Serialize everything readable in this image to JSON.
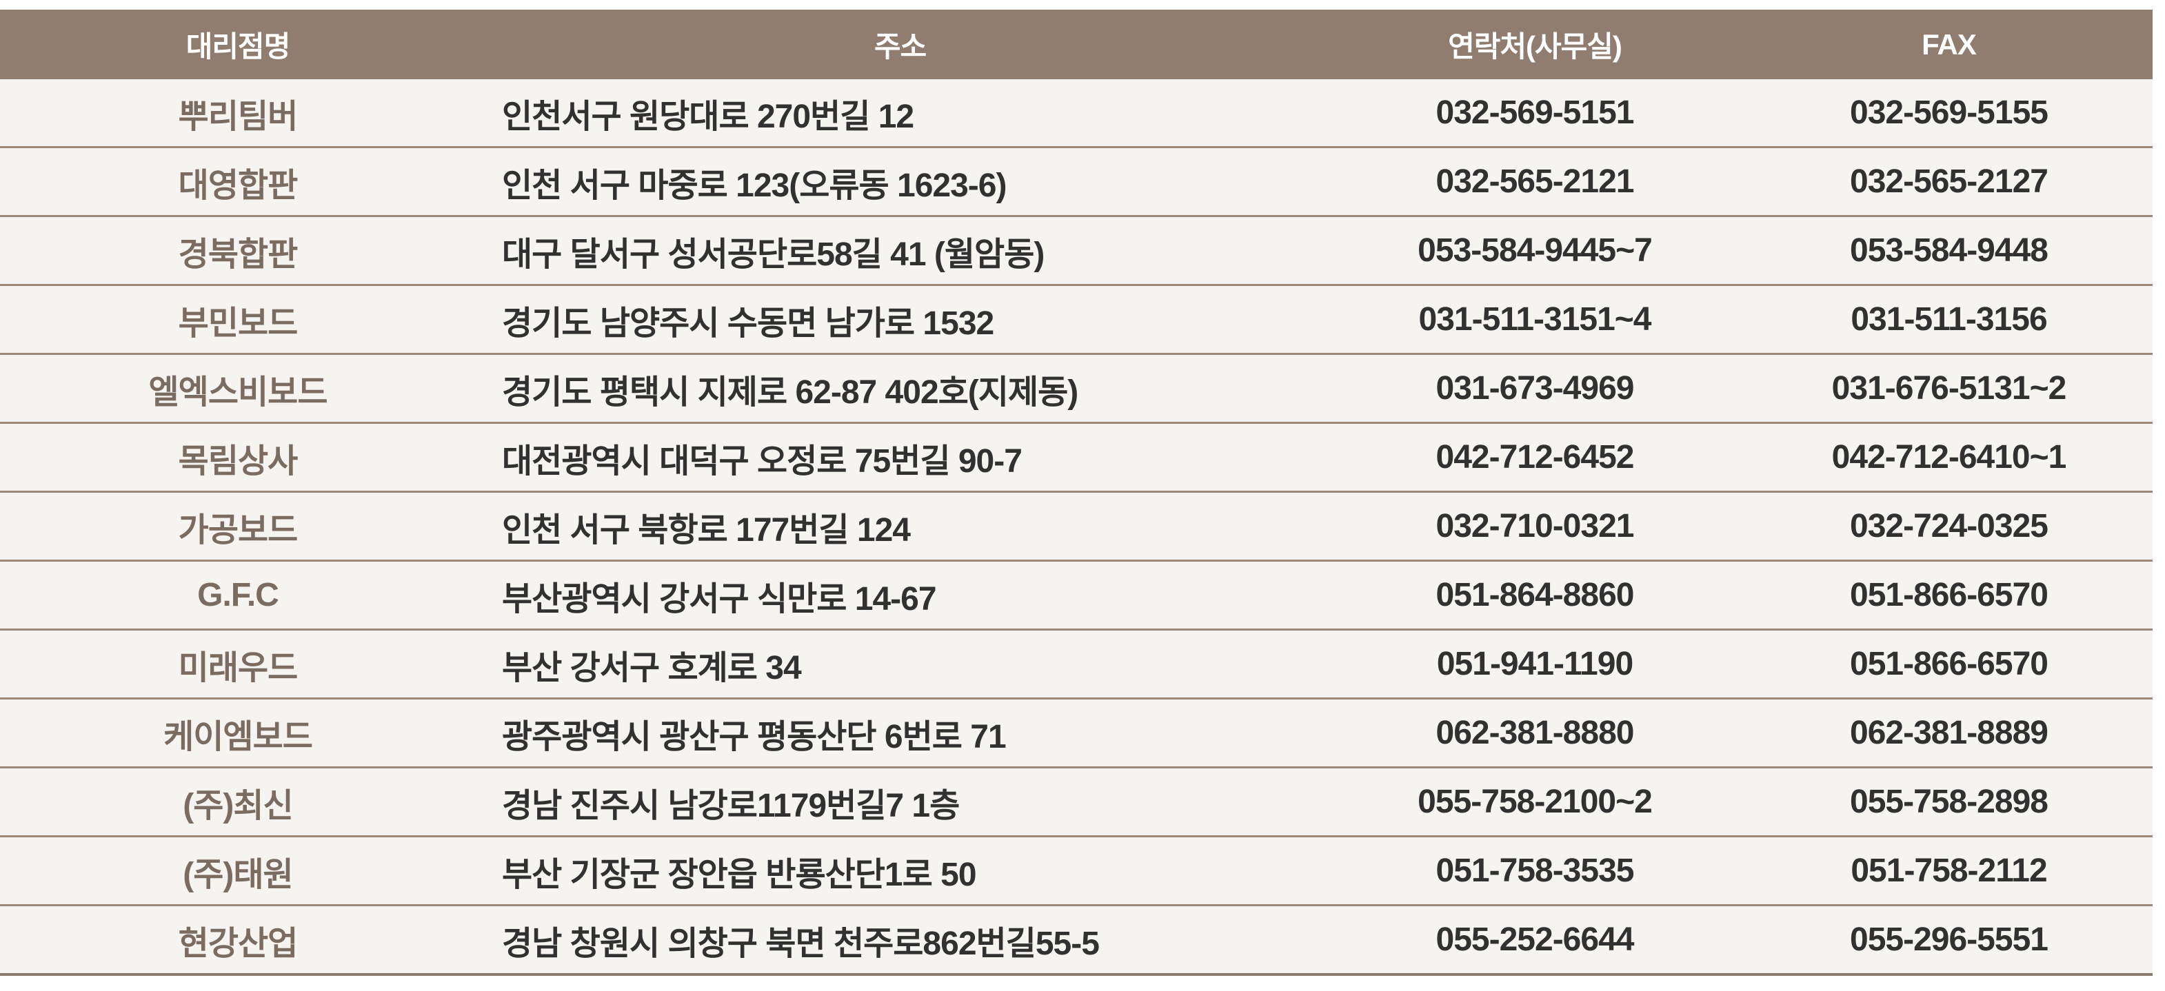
{
  "colors": {
    "header_bg": "#917d6f",
    "header_text": "#ffffff",
    "name_text": "#7b6c61",
    "body_text": "#313131",
    "row_bg": "#f5f4f1",
    "page_bg": "#ffffff",
    "border": "#9b8a7c",
    "border_last": "#8b7a6e"
  },
  "table": {
    "columns": [
      {
        "key": "name",
        "label": "대리점명"
      },
      {
        "key": "address",
        "label": "주소"
      },
      {
        "key": "phone",
        "label": "연락처(사무실)"
      },
      {
        "key": "fax",
        "label": "FAX"
      }
    ],
    "rows": [
      {
        "name": "뿌리팀버",
        "address": "인천서구 원당대로 270번길 12",
        "phone": "032-569-5151",
        "fax": "032-569-5155"
      },
      {
        "name": "대영합판",
        "address": "인천 서구 마중로 123(오류동 1623-6)",
        "phone": "032-565-2121",
        "fax": "032-565-2127"
      },
      {
        "name": "경북합판",
        "address": "대구 달서구 성서공단로58길 41 (월암동)",
        "phone": "053-584-9445~7",
        "fax": "053-584-9448"
      },
      {
        "name": "부민보드",
        "address": "경기도 남양주시 수동면 남가로 1532",
        "phone": "031-511-3151~4",
        "fax": "031-511-3156"
      },
      {
        "name": "엘엑스비보드",
        "address": "경기도 평택시 지제로 62-87 402호(지제동)",
        "phone": "031-673-4969",
        "fax": "031-676-5131~2"
      },
      {
        "name": "목림상사",
        "address": "대전광역시 대덕구 오정로 75번길 90-7",
        "phone": "042-712-6452",
        "fax": "042-712-6410~1"
      },
      {
        "name": "가공보드",
        "address": "인천 서구 북항로 177번길 124",
        "phone": "032-710-0321",
        "fax": "032-724-0325"
      },
      {
        "name": "G.F.C",
        "address": "부산광역시 강서구 식만로 14-67",
        "phone": "051-864-8860",
        "fax": "051-866-6570"
      },
      {
        "name": "미래우드",
        "address": "부산 강서구 호계로 34",
        "phone": "051-941-1190",
        "fax": "051-866-6570"
      },
      {
        "name": "케이엠보드",
        "address": "광주광역시 광산구 평동산단 6번로 71",
        "phone": "062-381-8880",
        "fax": "062-381-8889"
      },
      {
        "name": "(주)최신",
        "address": "경남 진주시 남강로1179번길7 1층",
        "phone": "055-758-2100~2",
        "fax": "055-758-2898"
      },
      {
        "name": "(주)태원",
        "address": "부산 기장군 장안읍 반룡산단1로 50",
        "phone": "051-758-3535",
        "fax": "051-758-2112"
      },
      {
        "name": "현강산업",
        "address": "경남 창원시 의창구 북면 천주로862번길55-5",
        "phone": "055-252-6644",
        "fax": "055-296-5551"
      }
    ]
  }
}
